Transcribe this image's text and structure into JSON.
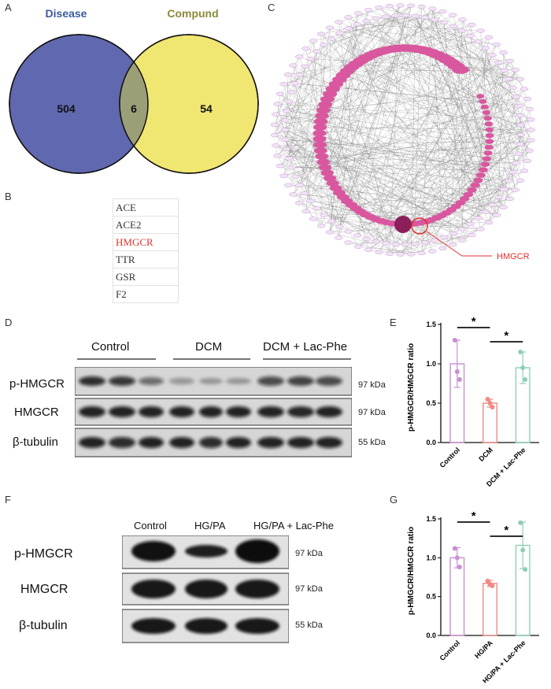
{
  "panels": [
    "A",
    "B",
    "C",
    "D",
    "E",
    "F",
    "G"
  ],
  "venn": {
    "left_label": "Disease",
    "right_label": "Compund",
    "left_only": "504",
    "overlap": "6",
    "right_only": "54",
    "colors": {
      "left": "#6068b0",
      "right": "#f0e672",
      "overlap": "#9b9f78",
      "left_label": "#3a5ba0",
      "right_label": "#8b8a3a"
    }
  },
  "gene_table": [
    {
      "name": "ACE",
      "highlight": false
    },
    {
      "name": "ACE2",
      "highlight": false
    },
    {
      "name": "HMGCR",
      "highlight": true
    },
    {
      "name": "TTR",
      "highlight": false
    },
    {
      "name": "GSR",
      "highlight": false
    },
    {
      "name": "F2",
      "highlight": false
    }
  ],
  "network": {
    "callout": "HMGCR",
    "callout_color": "#e0312d"
  },
  "blot_d": {
    "groups": [
      "Control",
      "DCM",
      "DCM + Lac-Phe"
    ],
    "rows": [
      {
        "label": "p-HMGCR",
        "kda": "97 kDa"
      },
      {
        "label": "HMGCR",
        "kda": "97 kDa"
      },
      {
        "label": "β-tubulin",
        "kda": "55 kDa"
      }
    ]
  },
  "blot_f": {
    "groups": [
      "Control",
      "HG/PA",
      "HG/PA + Lac-Phe"
    ],
    "rows": [
      {
        "label": "p-HMGCR",
        "kda": "97 kDa"
      },
      {
        "label": "HMGCR",
        "kda": "97 kDa"
      },
      {
        "label": "β-tubulin",
        "kda": "55 kDa"
      }
    ]
  },
  "chart_data": [
    {
      "type": "bar",
      "panel": "E",
      "categories": [
        "Control",
        "DCM",
        "DCM + Lac-Phe"
      ],
      "values": [
        1.0,
        0.5,
        0.95
      ],
      "errors": [
        0.3,
        0.05,
        0.2
      ],
      "points": [
        [
          1.3,
          0.9,
          0.8
        ],
        [
          0.55,
          0.5,
          0.45
        ],
        [
          1.15,
          0.95,
          0.8
        ]
      ],
      "ylabel": "p-HMGCR/HMGCR ratio",
      "ylim": [
        0,
        1.5
      ],
      "yticks": [
        "0.0",
        "0.5",
        "1.0",
        "1.5"
      ],
      "significance": [
        {
          "from": 0,
          "to": 1,
          "label": "*"
        },
        {
          "from": 1,
          "to": 2,
          "label": "*"
        }
      ],
      "colors": [
        "#c98fd2",
        "#f08a84",
        "#8fcfb3"
      ]
    },
    {
      "type": "bar",
      "panel": "G",
      "categories": [
        "Control",
        "HG/PA",
        "HG/PA + Lac-Phe"
      ],
      "values": [
        1.0,
        0.67,
        1.16
      ],
      "errors": [
        0.13,
        0.04,
        0.3
      ],
      "points": [
        [
          1.12,
          1.0,
          0.88
        ],
        [
          0.7,
          0.66,
          0.64
        ],
        [
          1.45,
          1.1,
          0.85
        ]
      ],
      "ylabel": "p-HMGCR/HMGCR ratio",
      "ylim": [
        0,
        1.5
      ],
      "yticks": [
        "0.0",
        "0.5",
        "1.0",
        "1.5"
      ],
      "significance": [
        {
          "from": 0,
          "to": 1,
          "label": "*"
        },
        {
          "from": 1,
          "to": 2,
          "label": "*"
        }
      ],
      "colors": [
        "#c98fd2",
        "#f08a84",
        "#8fcfb3"
      ]
    }
  ]
}
